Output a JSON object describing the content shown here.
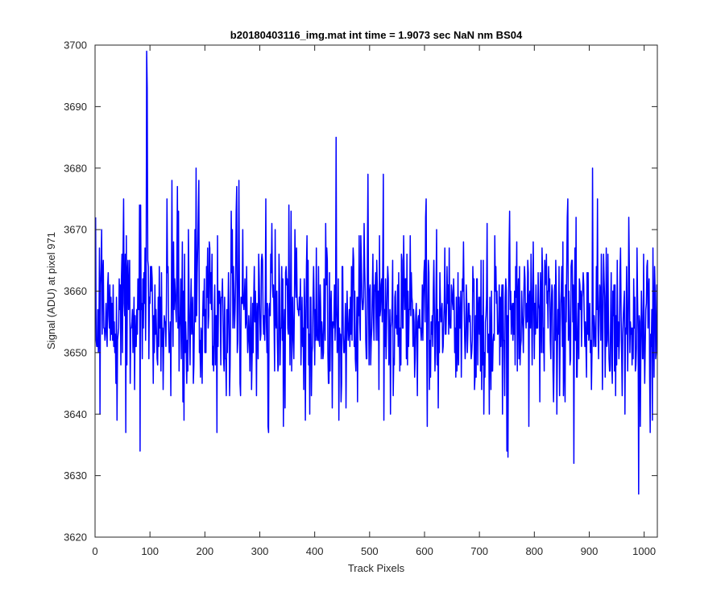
{
  "chart_data": {
    "type": "line",
    "title": "b20180403116_img.mat int time = 1.9073 sec  NaN nm BS04",
    "xlabel": "Track Pixels",
    "ylabel": "Signal (ADU) at pixel 971",
    "xlim": [
      0,
      1024
    ],
    "ylim": [
      3620,
      3700
    ],
    "xticks": [
      0,
      100,
      200,
      300,
      400,
      500,
      600,
      700,
      800,
      900,
      1000
    ],
    "yticks": [
      3620,
      3630,
      3640,
      3650,
      3660,
      3670,
      3680,
      3690,
      3700
    ],
    "grid": false,
    "legend": false,
    "series": [
      {
        "color": "#0000ff",
        "mean": 3656,
        "noise_sd": 7,
        "n_points": 1024,
        "x_start": 1,
        "highlights": [
          {
            "x": 1,
            "y": 3672
          },
          {
            "x": 9,
            "y": 3640
          },
          {
            "x": 12,
            "y": 3670
          },
          {
            "x": 40,
            "y": 3639
          },
          {
            "x": 52,
            "y": 3675
          },
          {
            "x": 56,
            "y": 3637
          },
          {
            "x": 81,
            "y": 3674
          },
          {
            "x": 82,
            "y": 3634
          },
          {
            "x": 94,
            "y": 3699
          },
          {
            "x": 95,
            "y": 3693
          },
          {
            "x": 140,
            "y": 3678
          },
          {
            "x": 150,
            "y": 3677
          },
          {
            "x": 162,
            "y": 3639
          },
          {
            "x": 184,
            "y": 3680
          },
          {
            "x": 189,
            "y": 3678
          },
          {
            "x": 258,
            "y": 3677
          },
          {
            "x": 262,
            "y": 3678
          },
          {
            "x": 315,
            "y": 3638
          },
          {
            "x": 346,
            "y": 3641
          },
          {
            "x": 357,
            "y": 3673
          },
          {
            "x": 383,
            "y": 3639
          },
          {
            "x": 439,
            "y": 3685
          },
          {
            "x": 444,
            "y": 3639
          },
          {
            "x": 497,
            "y": 3679
          },
          {
            "x": 525,
            "y": 3679
          },
          {
            "x": 538,
            "y": 3640
          },
          {
            "x": 605,
            "y": 3638
          },
          {
            "x": 750,
            "y": 3634
          },
          {
            "x": 752,
            "y": 3633
          },
          {
            "x": 860,
            "y": 3672
          },
          {
            "x": 872,
            "y": 3632
          },
          {
            "x": 906,
            "y": 3680
          },
          {
            "x": 965,
            "y": 3640
          },
          {
            "x": 990,
            "y": 3627
          },
          {
            "x": 1015,
            "y": 3639
          }
        ]
      }
    ]
  }
}
